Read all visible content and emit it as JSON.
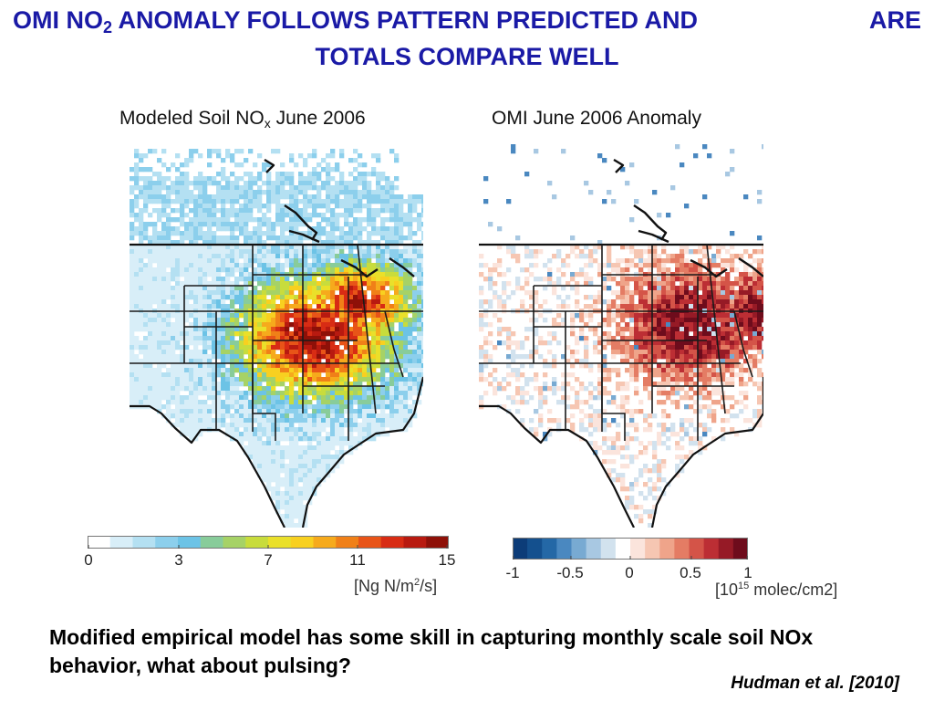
{
  "title": {
    "line1_pre": "OMI NO",
    "line1_sub": "2",
    "line1_post": " ANOMALY FOLLOWS PATTERN PREDICTED AND",
    "line1_right": "ARE",
    "line2": "TOTALS COMPARE WELL"
  },
  "left_panel": {
    "title_pre": "Modeled Soil NO",
    "title_sub": "x",
    "title_post": " June 2006",
    "colorbar": {
      "ticks": [
        "0",
        "3",
        "7",
        "11",
        "15"
      ],
      "unit_pre": "[Ng N/m",
      "unit_sup": "2",
      "unit_post": "/s]",
      "colors": [
        "#ffffff",
        "#d8eef8",
        "#b4e0f2",
        "#8ccfec",
        "#6cc3e6",
        "#88cc9a",
        "#a6d266",
        "#c8dc3c",
        "#eae02a",
        "#f8d020",
        "#f6aa1c",
        "#f08018",
        "#e85418",
        "#d82c14",
        "#b81a10",
        "#8e1008"
      ]
    }
  },
  "right_panel": {
    "title": "OMI June 2006 Anomaly",
    "colorbar": {
      "ticks": [
        "-1",
        "-0.5",
        "0",
        "0.5",
        "1"
      ],
      "unit_pre": "[10",
      "unit_sup": "15",
      "unit_post": " molec/cm2]",
      "colors": [
        "#0c3c78",
        "#14508e",
        "#2468a6",
        "#4a88c0",
        "#78aad2",
        "#a8c8e2",
        "#d2e2ee",
        "#ffffff",
        "#fbe4dc",
        "#f6c6b2",
        "#efa48a",
        "#e47c64",
        "#d45448",
        "#bc2e34",
        "#961a26",
        "#6e0c1c"
      ]
    }
  },
  "bottom_text": "Modified empirical model has some skill in capturing monthly scale soil NOx behavior, what about pulsing?",
  "citation": "Hudman et al. [2010]"
}
